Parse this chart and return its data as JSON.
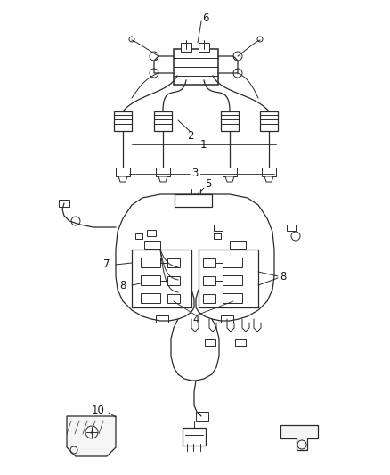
{
  "bg_color": "#ffffff",
  "line_color": "#2a2a2a",
  "label_color": "#1a1a1a",
  "figsize": [
    4.38,
    5.33
  ],
  "dpi": 100,
  "label_fontsize": 8.5,
  "lw_main": 1.1,
  "lw_thin": 0.7,
  "lw_med": 0.9
}
